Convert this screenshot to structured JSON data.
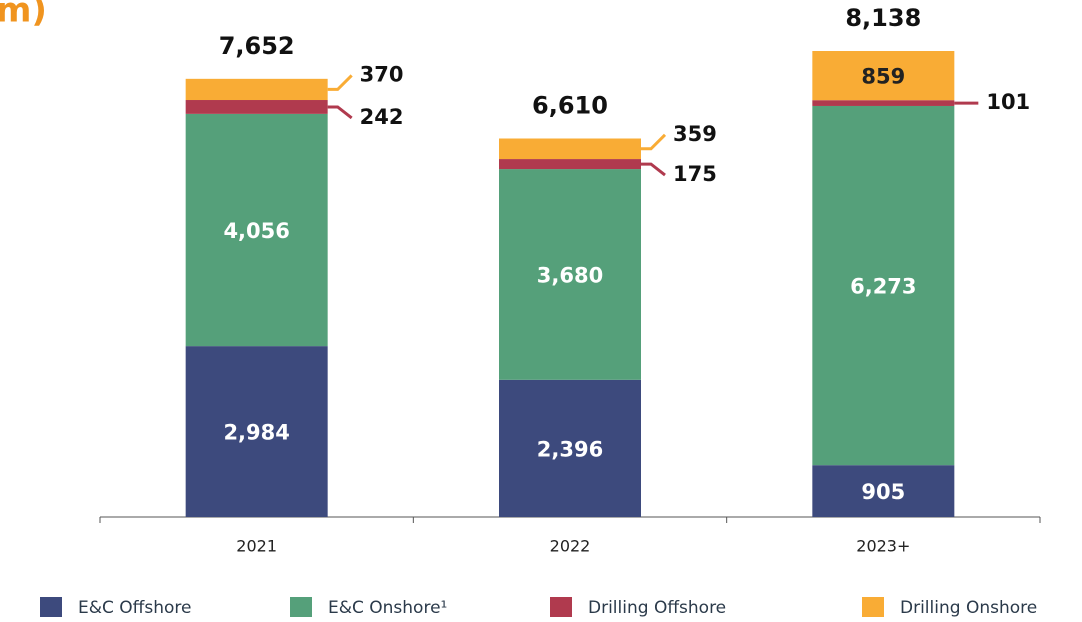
{
  "chart_data": {
    "type": "stacked-bar",
    "title": "m)",
    "categories": [
      "2021",
      "2022",
      "2023+"
    ],
    "series": [
      {
        "name": "E&C Offshore",
        "color": "#3d4a7d",
        "values": [
          2984,
          2396,
          905
        ],
        "value_labels": [
          "2,984",
          "2,396",
          "905"
        ]
      },
      {
        "name": "E&C Onshore¹",
        "color": "#55a07a",
        "values": [
          4056,
          3680,
          6273
        ],
        "value_labels": [
          "4,056",
          "3,680",
          "6,273"
        ]
      },
      {
        "name": "Drilling Offshore",
        "color": "#b03a4e",
        "values": [
          242,
          175,
          101
        ],
        "value_labels": [
          "242",
          "175",
          "101"
        ]
      },
      {
        "name": "Drilling Onshore",
        "color": "#f9ac35",
        "values": [
          370,
          359,
          859
        ],
        "value_labels": [
          "370",
          "359",
          "859"
        ]
      }
    ],
    "totals": [
      7652,
      6610,
      8138
    ],
    "totals_labels": [
      "7,652",
      "6,610",
      "8,138"
    ],
    "legend": "bottom"
  }
}
